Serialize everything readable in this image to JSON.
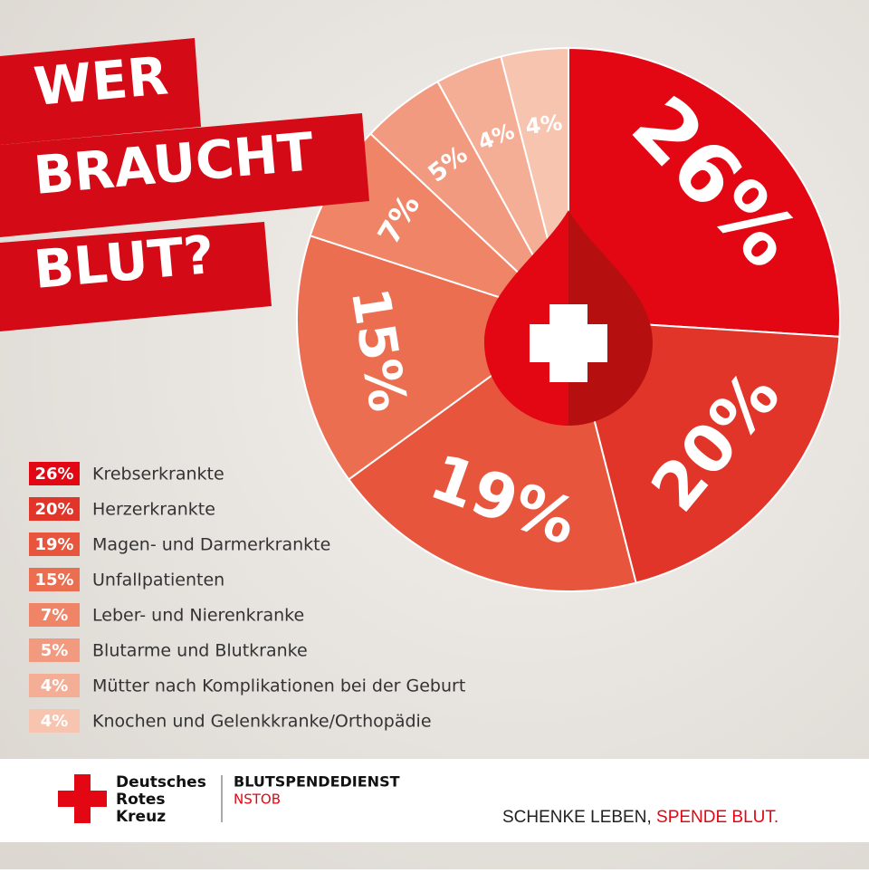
{
  "chart_data": {
    "type": "pie",
    "title_lines": [
      "WER",
      "BRAUCHT",
      "BLUT?"
    ],
    "categories": [
      "Krebserkrankte",
      "Herzerkrankte",
      "Magen- und Darmerkrankte",
      "Unfallpatienten",
      "Leber- und Nierenkranke",
      "Blutarme und Blutkranke",
      "Mütter nach Komplikationen bei der Geburt",
      "Knochen und Gelenkkranke/Orthopädie"
    ],
    "values": [
      26,
      20,
      19,
      15,
      7,
      5,
      4,
      4
    ],
    "value_labels": [
      "26%",
      "20%",
      "19%",
      "15%",
      "7%",
      "5%",
      "4%",
      "4%"
    ],
    "colors": [
      "#e30613",
      "#e2352a",
      "#e8553d",
      "#ec6e51",
      "#ef8466",
      "#f19a7f",
      "#f4ae96",
      "#f7c4b0"
    ]
  },
  "footer": {
    "org_lines": [
      "Deutsches",
      "Rotes",
      "Kreuz"
    ],
    "service": "BLUTSPENDEDIENST",
    "region": "NSTOB",
    "slogan_1": "SCHENKE LEBEN,",
    "slogan_2": "SPENDE BLUT."
  }
}
